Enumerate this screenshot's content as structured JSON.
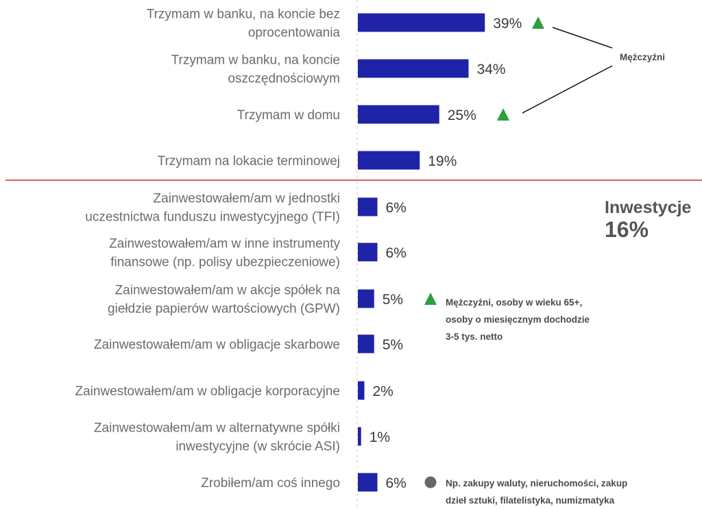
{
  "chart_data": {
    "type": "bar",
    "orientation": "horizontal",
    "categories": [
      [
        "Trzymam w banku, na koncie bez",
        "oprocentowania"
      ],
      [
        "Trzymam w banku, na koncie",
        "oszczędnościowym"
      ],
      [
        "Trzymam w domu"
      ],
      [
        "Trzymam na lokacie terminowej"
      ],
      [
        "Zainwestowałem/am w jednostki",
        "uczestnictwa funduszu inwestycyjnego (TFI)"
      ],
      [
        "Zainwestowałem/am w inne instrumenty",
        "finansowe (np. polisy ubezpieczeniowe)"
      ],
      [
        "Zainwestowałem/am w akcje spółek na",
        "giełdzie papierów wartościowych (GPW)"
      ],
      [
        "Zainwestowałem/am w obligacje skarbowe"
      ],
      [
        "Zainwestowałem/am w obligacje korporacyjne"
      ],
      [
        "Zainwestowałem/am w alternatywne spółki",
        "inwestycyjne (w skrócie ASI)"
      ],
      [
        "Zrobiłem/am coś innego"
      ]
    ],
    "values": [
      39,
      34,
      25,
      19,
      6,
      6,
      5,
      5,
      2,
      1,
      6
    ],
    "value_labels": [
      "39%",
      "34%",
      "25%",
      "19%",
      "6%",
      "6%",
      "5%",
      "5%",
      "2%",
      "1%",
      "6%"
    ],
    "unit": "%",
    "bar_color": "#1f23a8",
    "separator_color": "#d9272e",
    "up_marker_color": "#2e9e3e",
    "dot_marker_color": "#666666",
    "up_markers": [
      0,
      2,
      6
    ],
    "dot_markers": [
      10
    ],
    "callouts": {
      "men": "Mężczyźni",
      "gpw_lines": [
        "Mężczyźni, osoby w wieku 65+,",
        "osoby o miesięcznym dochodzie",
        "3-5 tys. netto"
      ],
      "other_lines": [
        "Np. zakupy waluty, nieruchomości, zakup",
        "dzieł sztuki, filatelistyka, numizmatyka"
      ]
    },
    "investments": {
      "title": "Inwestycje",
      "value": "16%"
    }
  }
}
